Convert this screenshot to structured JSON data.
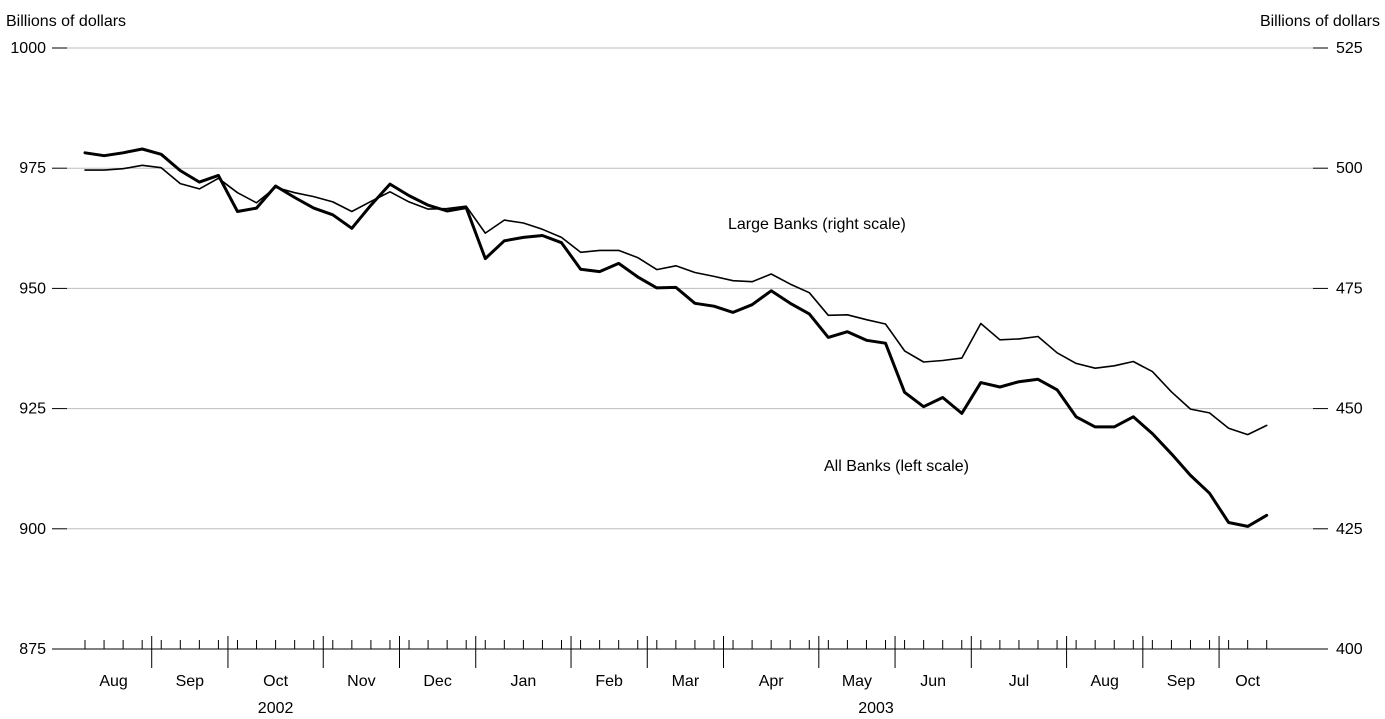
{
  "chart_data": {
    "type": "line",
    "title": "",
    "y_left": {
      "label": "Billions of dollars",
      "ticks": [
        875,
        900,
        925,
        950,
        975,
        1000
      ],
      "tick_labels": [
        "875",
        "900",
        "925",
        "950",
        "975",
        "1000"
      ],
      "range": [
        875,
        1000
      ]
    },
    "y_right": {
      "label": "Billions of dollars",
      "ticks": [
        400,
        425,
        450,
        475,
        500,
        525
      ],
      "tick_labels": [
        "400",
        "425",
        "450",
        "475",
        "500",
        "525"
      ],
      "range": [
        400,
        525
      ]
    },
    "x_axis": {
      "month_labels": [
        "Aug",
        "Sep",
        "Oct",
        "Nov",
        "Dec",
        "Jan",
        "Feb",
        "Mar",
        "Apr",
        "May",
        "Jun",
        "Jul",
        "Aug",
        "Sep",
        "Oct"
      ],
      "year_labels": [
        "2002",
        "2003"
      ]
    },
    "grid": "horizontal",
    "x": [
      "2002-08-07",
      "2002-08-14",
      "2002-08-21",
      "2002-08-28",
      "2002-09-04",
      "2002-09-11",
      "2002-09-18",
      "2002-09-25",
      "2002-10-02",
      "2002-10-09",
      "2002-10-16",
      "2002-10-23",
      "2002-10-30",
      "2002-11-06",
      "2002-11-13",
      "2002-11-20",
      "2002-11-27",
      "2002-12-04",
      "2002-12-11",
      "2002-12-18",
      "2002-12-25",
      "2003-01-01",
      "2003-01-08",
      "2003-01-15",
      "2003-01-22",
      "2003-01-29",
      "2003-02-05",
      "2003-02-12",
      "2003-02-19",
      "2003-02-26",
      "2003-03-05",
      "2003-03-12",
      "2003-03-19",
      "2003-03-26",
      "2003-04-02",
      "2003-04-09",
      "2003-04-16",
      "2003-04-23",
      "2003-04-30",
      "2003-05-07",
      "2003-05-14",
      "2003-05-21",
      "2003-05-28",
      "2003-06-04",
      "2003-06-11",
      "2003-06-18",
      "2003-06-25",
      "2003-07-02",
      "2003-07-09",
      "2003-07-16",
      "2003-07-23",
      "2003-07-30",
      "2003-08-06",
      "2003-08-13",
      "2003-08-20",
      "2003-08-27",
      "2003-09-03",
      "2003-09-10",
      "2003-09-17",
      "2003-09-24",
      "2003-10-01",
      "2003-10-08",
      "2003-10-15"
    ],
    "series": [
      {
        "name": "All Banks (left scale)",
        "axis": "left",
        "values": [
          978.2,
          977.6,
          978.2,
          979.0,
          977.9,
          974.5,
          972.1,
          973.5,
          966.0,
          966.7,
          971.3,
          968.9,
          966.7,
          965.3,
          962.5,
          967.3,
          971.7,
          969.3,
          967.3,
          966.1,
          966.8,
          956.2,
          959.9,
          960.6,
          961.0,
          959.5,
          954.0,
          953.5,
          955.2,
          952.4,
          950.1,
          950.2,
          946.9,
          946.3,
          945.0,
          946.6,
          949.5,
          946.9,
          944.7,
          939.8,
          941.0,
          939.2,
          938.6,
          928.4,
          925.4,
          927.3,
          924.0,
          930.4,
          929.5,
          930.6,
          931.1,
          928.9,
          923.3,
          921.2,
          921.2,
          923.3,
          919.8,
          915.6,
          911.1,
          907.4,
          901.3,
          900.5,
          902.8
        ]
      },
      {
        "name": "Large Banks (right scale)",
        "axis": "right",
        "values": [
          499.6,
          499.6,
          499.9,
          500.6,
          500.1,
          496.8,
          495.7,
          497.9,
          494.9,
          492.8,
          496.0,
          494.9,
          494.1,
          493.0,
          491.0,
          493.1,
          495.1,
          493.0,
          491.5,
          491.6,
          492.1,
          486.5,
          489.2,
          488.6,
          487.3,
          485.6,
          482.5,
          482.9,
          482.9,
          481.4,
          478.9,
          479.7,
          478.3,
          477.5,
          476.6,
          476.4,
          478.0,
          475.9,
          474.1,
          469.4,
          469.5,
          468.5,
          467.6,
          462.0,
          459.7,
          460.0,
          460.5,
          467.7,
          464.3,
          464.5,
          465.0,
          461.6,
          459.4,
          458.4,
          458.9,
          459.8,
          457.7,
          453.5,
          449.9,
          449.1,
          445.9,
          444.6,
          446.5
        ]
      }
    ],
    "annotations": [
      {
        "text": "Large Banks (right scale)",
        "series": "Large Banks (right scale)"
      },
      {
        "text": "All Banks (left scale)",
        "series": "All Banks (left scale)"
      }
    ]
  }
}
